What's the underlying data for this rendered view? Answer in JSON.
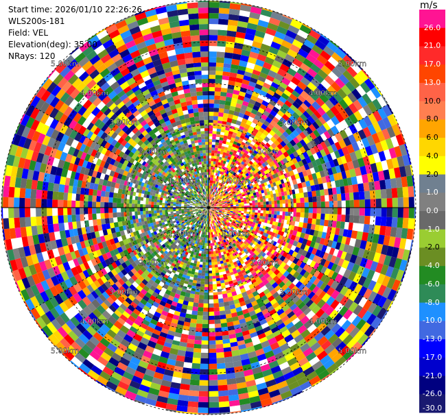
{
  "header": {
    "start_time": "Start time: 2026/01/10 22:26:26",
    "instrument": "WLS200s-181",
    "field": "Field: VEL",
    "elevation": "Elevation(deg): 35.00",
    "nrays": "NRays: 120"
  },
  "chart_data": {
    "type": "heatmap",
    "projection": "polar-ppi",
    "field": "VEL",
    "units": "m/s",
    "n_rays": 120,
    "range_max_km": 5.0,
    "range_rings_km": [
      1,
      2,
      3,
      4,
      5
    ],
    "ring_labels": [
      "1.00km",
      "2.00km",
      "3.00km",
      "4.00km",
      "5.00km"
    ],
    "spoke_angles_deg": [
      0,
      30,
      60,
      90,
      120,
      150,
      180,
      210,
      240,
      270,
      300,
      330
    ],
    "colorbar": {
      "title": "m/s",
      "ticks": [
        "26.0",
        "21.0",
        "17.0",
        "13.0",
        "10.0",
        "8.0",
        "6.0",
        "4.0",
        "2.0",
        "1.0",
        "0.0",
        "-1.0",
        "-2.0",
        "-4.0",
        "-6.0",
        "-8.0",
        "-10.0",
        "-13.0",
        "-17.0",
        "-21.0",
        "-26.0",
        "-30.0"
      ],
      "colors": [
        "#ff1493",
        "#ff0000",
        "#ff2a2a",
        "#ff4500",
        "#ff6347",
        "#ff7f50",
        "#ffa500",
        "#ffd700",
        "#ffff00",
        "#708090",
        "#808080",
        "#696969",
        "#9acd32",
        "#6b8e23",
        "#228b22",
        "#2e8b57",
        "#1e90ff",
        "#4169e1",
        "#0000ff",
        "#0000cd",
        "#000080",
        "#191970"
      ]
    }
  }
}
